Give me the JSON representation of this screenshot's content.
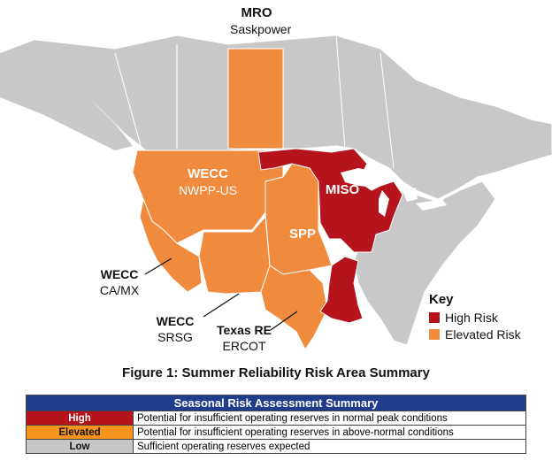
{
  "map": {
    "regions": [
      {
        "name": "MRO",
        "sub": "Saskpower",
        "risk": "elevated"
      },
      {
        "name": "WECC",
        "sub": "NWPP-US",
        "risk": "elevated"
      },
      {
        "name": "WECC",
        "sub": "CA/MX",
        "risk": "elevated"
      },
      {
        "name": "WECC",
        "sub": "SRSG",
        "risk": "elevated"
      },
      {
        "name": "Texas RE",
        "sub": "ERCOT",
        "risk": "elevated"
      },
      {
        "name": "SPP",
        "sub": "",
        "risk": "elevated"
      },
      {
        "name": "MISO",
        "sub": "",
        "risk": "high"
      }
    ],
    "key": {
      "title": "Key",
      "items": [
        {
          "label": "High Risk",
          "color": "#b5141c"
        },
        {
          "label": "Elevated Risk",
          "color": "#f08a3c"
        }
      ]
    },
    "colors": {
      "land": "#c8c8c8",
      "elevated": "#f08a3c",
      "high": "#b5141c",
      "water": "#ffffff"
    }
  },
  "caption": "Figure 1: Summer Reliability Risk Area Summary",
  "summary_table": {
    "title": "Seasonal Risk Assessment Summary",
    "rows": [
      {
        "level": "High",
        "description": "Potential for insufficient operating reserves in normal peak conditions",
        "color": "#b5141c",
        "text_color": "#ffffff"
      },
      {
        "level": "Elevated",
        "description": "Potential for insufficient operating reserves in above-normal conditions",
        "color": "#f7941d",
        "text_color": "#111111"
      },
      {
        "level": "Low",
        "description": "Sufficient operating reserves expected",
        "color": "#c6c6c6",
        "text_color": "#111111"
      }
    ]
  }
}
